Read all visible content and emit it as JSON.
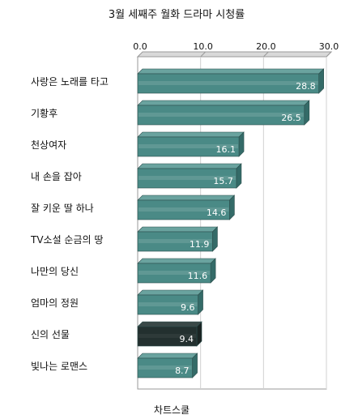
{
  "chart_data": {
    "type": "bar",
    "orientation": "horizontal",
    "title": "3월 세째주 월화 드라마 시청률",
    "categories": [
      "사랑은 노래를 타고",
      "기황후",
      "천상여자",
      "내 손을 잡아",
      "잘 키운 딸 하나",
      "TV소설 순금의 땅",
      "나만의 당신",
      "엄마의 정원",
      "신의 선물",
      "빛나는 로맨스"
    ],
    "values": [
      28.8,
      26.5,
      16.1,
      15.7,
      14.6,
      11.9,
      11.6,
      9.6,
      9.4,
      8.7
    ],
    "value_labels": [
      "28.8",
      "26.5",
      "16.1",
      "15.7",
      "14.6",
      "11.9",
      "11.6",
      "9.6",
      "9.4",
      "8.7"
    ],
    "x_ticks": [
      "0.0",
      "10.0",
      "20.0",
      "30.0"
    ],
    "x_tick_values": [
      0,
      10,
      20,
      30
    ],
    "xlim": [
      0,
      30
    ],
    "xaxis_position": "top",
    "grid": true,
    "bar_color": "#4a8a86",
    "highlight_index": 8,
    "highlight_color": "#23302f",
    "footer": "차트스쿨"
  }
}
